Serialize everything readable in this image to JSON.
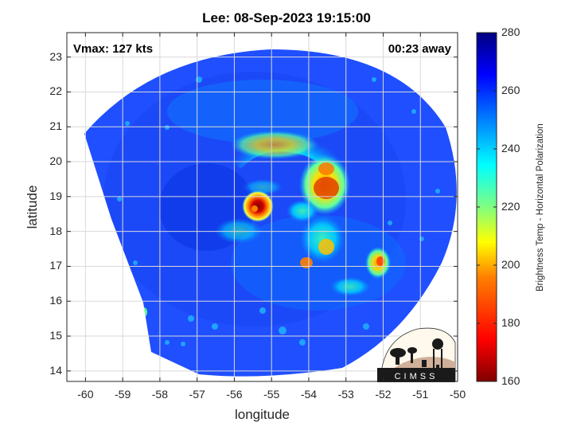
{
  "title": "Lee: 08-Sep-2023 19:15:00",
  "vmax_label": "Vmax: 127 kts",
  "time_away_label": "00:23 away",
  "axes": {
    "xlabel": "longitude",
    "ylabel": "latitude",
    "xlim": [
      -60.5,
      -50
    ],
    "ylim": [
      13.7,
      23.7
    ],
    "xticks": [
      "-60",
      "-59",
      "-58",
      "-57",
      "-56",
      "-55",
      "-54",
      "-53",
      "-52",
      "-51",
      "-50"
    ],
    "yticks": [
      "23",
      "22",
      "21",
      "20",
      "19",
      "18",
      "17",
      "16",
      "15",
      "14"
    ],
    "grid": true
  },
  "colorbar": {
    "label": "Brightness Temp - Horizontal Polarization",
    "range": [
      160,
      280
    ],
    "ticks": [
      "280",
      "260",
      "240",
      "220",
      "200",
      "180",
      "160"
    ],
    "colormap": "jet",
    "colors": [
      "#800000",
      "#ff0000",
      "#ff8000",
      "#ffff00",
      "#80ff80",
      "#00ffff",
      "#0080ff",
      "#0000ff",
      "#000080"
    ]
  },
  "logo_text": "CIMSS",
  "storm_center": {
    "lon": -55.4,
    "lat": 18.8
  },
  "swath_background_color": "#1f4fff"
}
